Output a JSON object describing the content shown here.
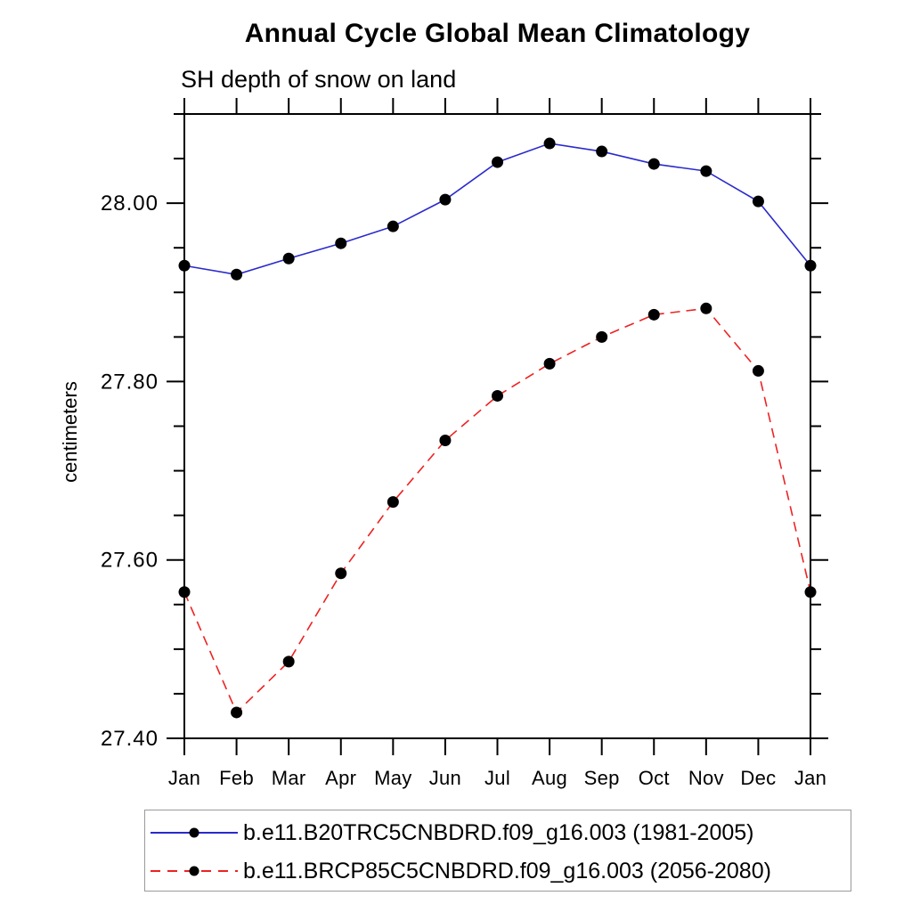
{
  "chart_data": {
    "type": "line",
    "title": "Annual Cycle Global Mean Climatology",
    "subtitle": "SH depth of snow on land",
    "ylabel": "centimeters",
    "categories": [
      "Jan",
      "Feb",
      "Mar",
      "Apr",
      "May",
      "Jun",
      "Jul",
      "Aug",
      "Sep",
      "Oct",
      "Nov",
      "Dec",
      "Jan"
    ],
    "ylim": [
      27.4,
      28.1
    ],
    "y_major_ticks": [
      27.4,
      27.6,
      27.8,
      28.0
    ],
    "y_major_tick_labels": [
      "27.40",
      "27.60",
      "27.80",
      "28.00"
    ],
    "y_minor_tick_step": 0.05,
    "grid": false,
    "legend_position": "bottom",
    "axis_color": "#000000",
    "marker": {
      "shape": "filled-circle",
      "color": "#000000"
    },
    "series": [
      {
        "name": "b.e11.B20TRC5CNBDRD.f09_g16.003 (1981-2005)",
        "color": "#2a2acc",
        "line_style": "solid",
        "values": [
          27.93,
          27.92,
          27.938,
          27.955,
          27.974,
          28.004,
          28.046,
          28.067,
          28.058,
          28.044,
          28.036,
          28.002,
          27.93
        ]
      },
      {
        "name": "b.e11.BRCP85C5CNBDRD.f09_g16.003 (2056-2080)",
        "color": "#ee2222",
        "line_style": "dashed",
        "values": [
          27.564,
          27.429,
          27.486,
          27.585,
          27.665,
          27.734,
          27.784,
          27.82,
          27.85,
          27.875,
          27.882,
          27.812,
          27.564
        ]
      }
    ]
  }
}
